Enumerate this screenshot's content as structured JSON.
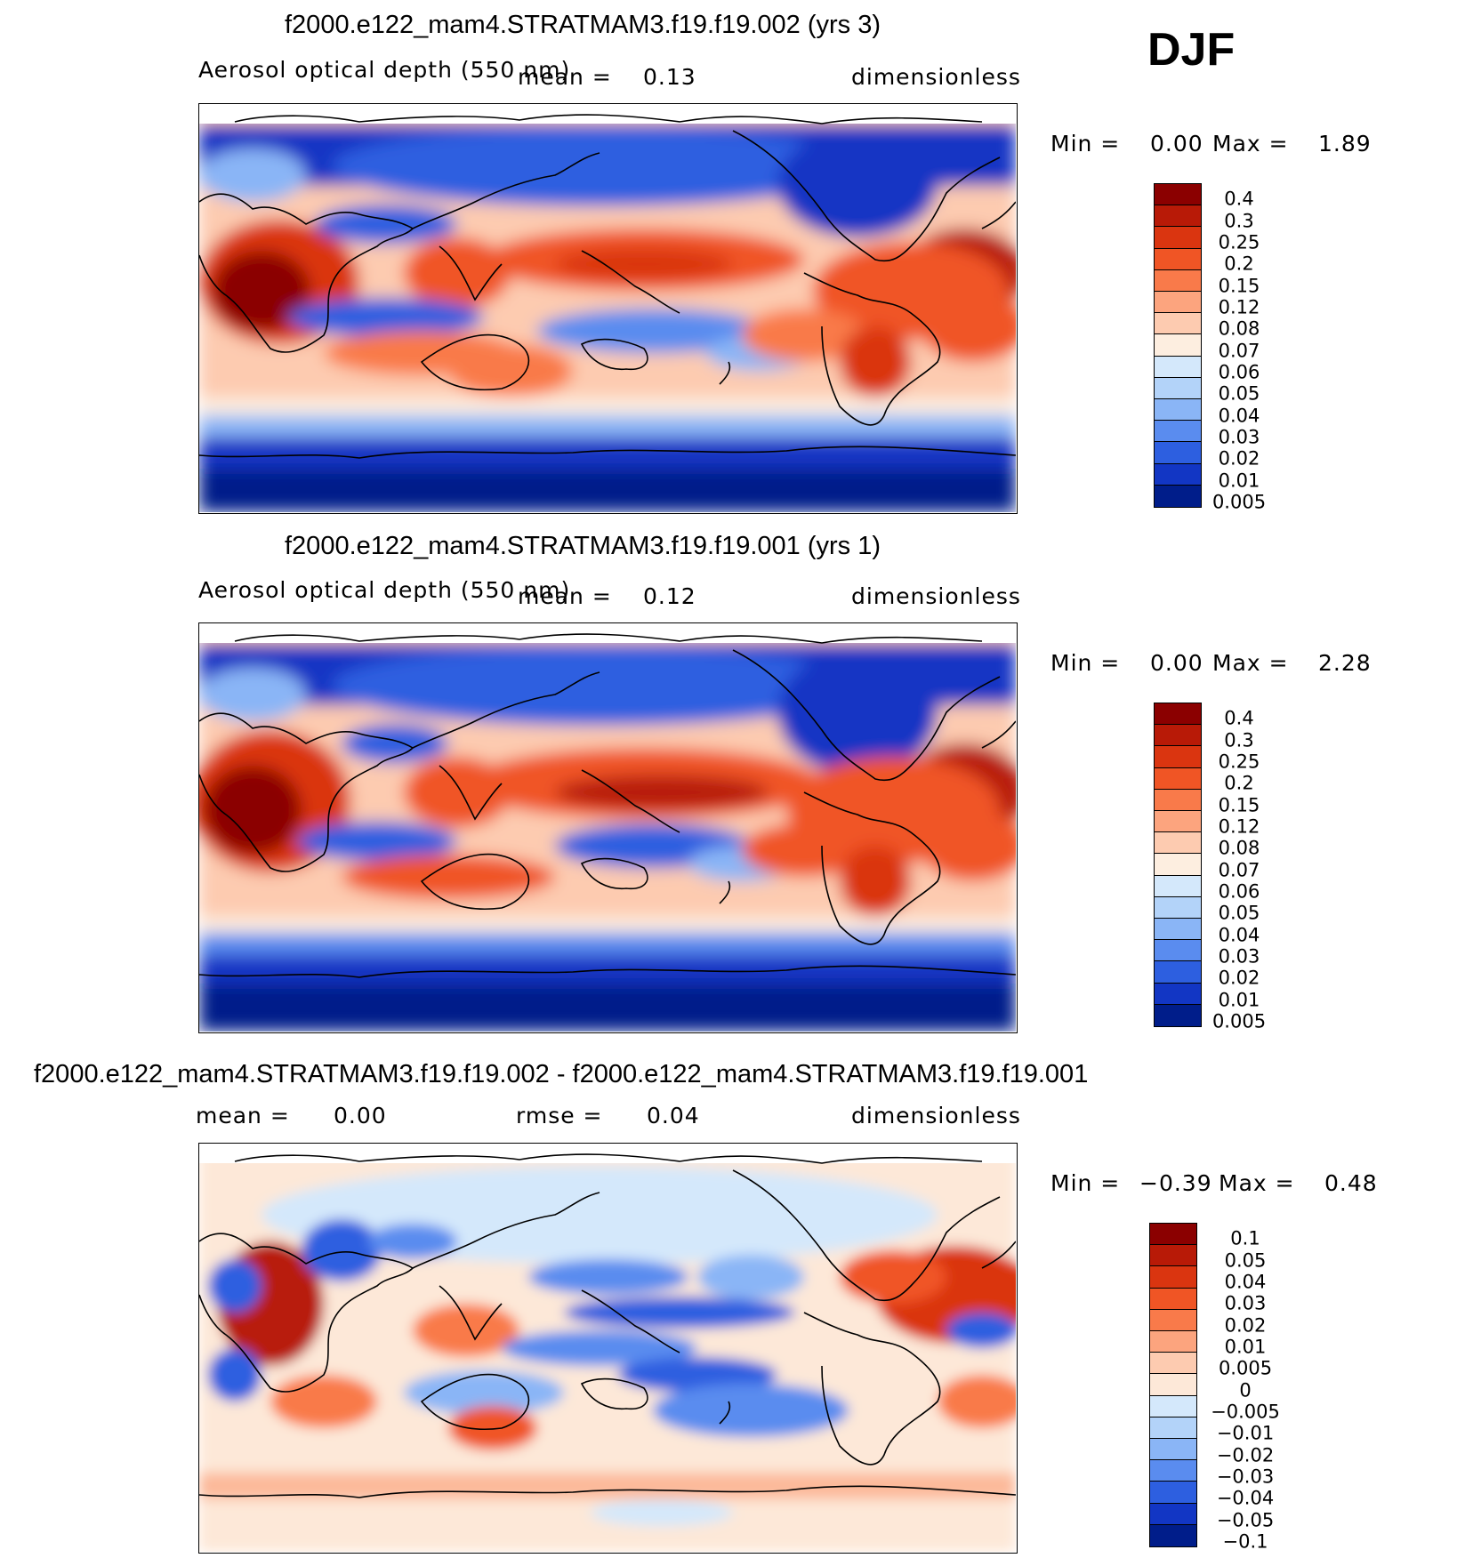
{
  "season": "DJF",
  "panels": [
    {
      "title": "f2000.e122_mam4.STRATMAM3.f19.f19.002 (yrs 3)",
      "variable": "Aerosol optical depth (550 nm)",
      "mean_label": "mean =",
      "mean_value": "0.13",
      "units": "dimensionless",
      "min_label": "Min =",
      "min_value": "0.00",
      "max_label": "Max =",
      "max_value": "1.89",
      "colorbar": {
        "labels": [
          "0.4",
          "0.3",
          "0.25",
          "0.2",
          "0.15",
          "0.12",
          "0.08",
          "0.07",
          "0.06",
          "0.05",
          "0.04",
          "0.03",
          "0.02",
          "0.01",
          "0.005"
        ],
        "colors": [
          "#8b0000",
          "#b81a07",
          "#da3510",
          "#f05525",
          "#f97a4a",
          "#fca47e",
          "#fdcbb0",
          "#fdeee0",
          "#d4e8fb",
          "#b3d3f9",
          "#8ab5f6",
          "#5a8cef",
          "#2d5fe0",
          "#1236c4",
          "#001d8a"
        ]
      }
    },
    {
      "title": "f2000.e122_mam4.STRATMAM3.f19.f19.001 (yrs 1)",
      "variable": "Aerosol optical depth (550 nm)",
      "mean_label": "mean =",
      "mean_value": "0.12",
      "units": "dimensionless",
      "min_label": "Min =",
      "min_value": "0.00",
      "max_label": "Max =",
      "max_value": "2.28",
      "colorbar": {
        "labels": [
          "0.4",
          "0.3",
          "0.25",
          "0.2",
          "0.15",
          "0.12",
          "0.08",
          "0.07",
          "0.06",
          "0.05",
          "0.04",
          "0.03",
          "0.02",
          "0.01",
          "0.005"
        ],
        "colors": [
          "#8b0000",
          "#b81a07",
          "#da3510",
          "#f05525",
          "#f97a4a",
          "#fca47e",
          "#fdcbb0",
          "#fdeee0",
          "#d4e8fb",
          "#b3d3f9",
          "#8ab5f6",
          "#5a8cef",
          "#2d5fe0",
          "#1236c4",
          "#001d8a"
        ]
      }
    },
    {
      "title": "f2000.e122_mam4.STRATMAM3.f19.f19.002 - f2000.e122_mam4.STRATMAM3.f19.f19.001",
      "mean_label": "mean =",
      "mean_value": "0.00",
      "rmse_label": "rmse =",
      "rmse_value": "0.04",
      "units": "dimensionless",
      "min_label": "Min =",
      "min_value": "−0.39",
      "max_label": "Max =",
      "max_value": "0.48",
      "colorbar": {
        "labels": [
          "0.1",
          "0.05",
          "0.04",
          "0.03",
          "0.02",
          "0.01",
          "0.005",
          "0",
          "−0.005",
          "−0.01",
          "−0.02",
          "−0.03",
          "−0.04",
          "−0.05",
          "−0.1"
        ],
        "colors": [
          "#8b0000",
          "#b81a07",
          "#da3510",
          "#f05525",
          "#f97a4a",
          "#fca47e",
          "#fdcbb0",
          "#fde8d8",
          "#d4e8fb",
          "#b3d3f9",
          "#8ab5f6",
          "#5a8cef",
          "#2d5fe0",
          "#1236c4",
          "#001d8a"
        ]
      }
    }
  ]
}
